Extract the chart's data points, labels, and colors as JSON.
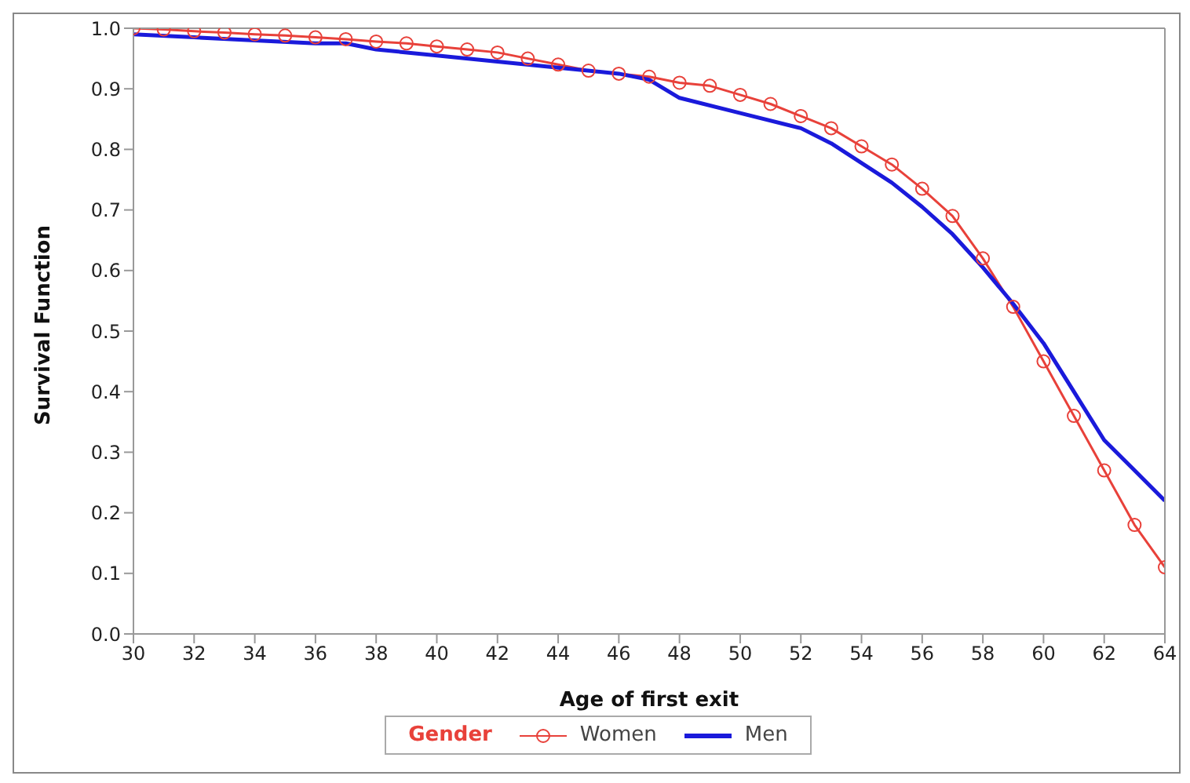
{
  "chart_data": {
    "type": "line",
    "xlabel": "Age of first exit",
    "ylabel": "Survival Function",
    "legend_title": "Gender",
    "legend": "bottom",
    "xlim": [
      30,
      64
    ],
    "xticks": [
      30,
      32,
      34,
      36,
      38,
      40,
      42,
      44,
      46,
      48,
      50,
      52,
      54,
      56,
      58,
      60,
      62,
      64
    ],
    "ylim": [
      0,
      1
    ],
    "yticks": [
      {
        "value": 0,
        "label": "0.0"
      },
      0.1,
      0.2,
      0.3,
      0.4,
      0.5,
      0.6,
      0.7,
      0.8,
      0.9,
      {
        "value": 1,
        "label": "1.0"
      }
    ],
    "series": [
      {
        "name": "Women",
        "color": "#e8413a",
        "marker": "circle",
        "x": [
          30,
          31,
          32,
          33,
          34,
          35,
          36,
          37,
          38,
          39,
          40,
          41,
          42,
          43,
          44,
          45,
          46,
          47,
          48,
          49,
          50,
          51,
          52,
          53,
          54,
          55,
          56,
          57,
          58,
          59,
          60,
          61,
          62,
          63,
          64
        ],
        "values": [
          1.0,
          0.998,
          0.995,
          0.993,
          0.99,
          0.988,
          0.985,
          0.982,
          0.978,
          0.975,
          0.97,
          0.965,
          0.96,
          0.95,
          0.94,
          0.93,
          0.925,
          0.92,
          0.91,
          0.905,
          0.89,
          0.875,
          0.855,
          0.835,
          0.805,
          0.775,
          0.735,
          0.69,
          0.62,
          0.54,
          0.45,
          0.36,
          0.27,
          0.18,
          0.11
        ]
      },
      {
        "name": "Men",
        "color": "#1a1adb",
        "marker": "none",
        "x": [
          30,
          32,
          34,
          36,
          37,
          38,
          40,
          42,
          44,
          46,
          47,
          48,
          50,
          52,
          53,
          55,
          56,
          57,
          58,
          59,
          60,
          61,
          62,
          63,
          64
        ],
        "values": [
          0.99,
          0.985,
          0.98,
          0.975,
          0.975,
          0.965,
          0.955,
          0.945,
          0.935,
          0.925,
          0.915,
          0.885,
          0.86,
          0.835,
          0.81,
          0.745,
          0.705,
          0.66,
          0.605,
          0.545,
          0.48,
          0.4,
          0.32,
          0.27,
          0.22
        ]
      }
    ]
  }
}
